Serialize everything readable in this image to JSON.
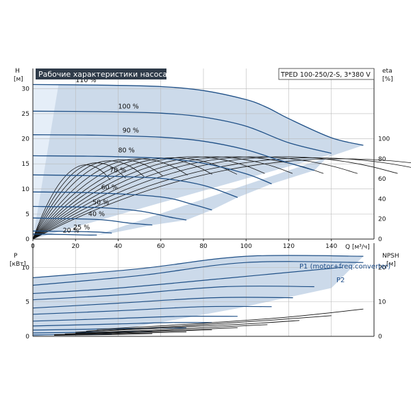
{
  "chart_data": [
    {
      "type": "line",
      "title": "Рабочие характеристики насоса",
      "model": "TPED 100-250/2-S, 3*380 V",
      "ylabel": "H",
      "yunit": "[м]",
      "y2label": "eta",
      "y2unit": "[%]",
      "xlabel": "Q [м³/ч]",
      "xlim": [
        0,
        160
      ],
      "ylim": [
        0,
        34
      ],
      "y2lim": [
        0,
        170
      ],
      "xticks": [
        0,
        20,
        40,
        60,
        80,
        100,
        120,
        140
      ],
      "yticks": [
        0,
        5,
        10,
        15,
        20,
        25,
        30
      ],
      "y2ticks": [
        0,
        20,
        40,
        60,
        80,
        100
      ],
      "grid": true,
      "speed_curves": [
        {
          "name": "110 %",
          "points": [
            [
              0,
              30.8
            ],
            [
              30,
              30.7
            ],
            [
              60,
              30.4
            ],
            [
              80,
              29.6
            ],
            [
              100,
              27.8
            ],
            [
              110,
              26.2
            ],
            [
              120,
              24.0
            ],
            [
              140,
              20.2
            ],
            [
              155,
              18.7
            ]
          ]
        },
        {
          "name": "100 %",
          "points": [
            [
              0,
              25.5
            ],
            [
              30,
              25.4
            ],
            [
              60,
              25.1
            ],
            [
              80,
              24.3
            ],
            [
              100,
              22.5
            ],
            [
              120,
              19.2
            ],
            [
              140,
              17.1
            ]
          ]
        },
        {
          "name": "90 %",
          "points": [
            [
              0,
              20.8
            ],
            [
              30,
              20.7
            ],
            [
              60,
              20.3
            ],
            [
              80,
              19.5
            ],
            [
              100,
              17.8
            ],
            [
              115,
              15.8
            ],
            [
              132,
              13.7
            ]
          ]
        },
        {
          "name": "80 %",
          "points": [
            [
              0,
              16.6
            ],
            [
              30,
              16.5
            ],
            [
              60,
              16.1
            ],
            [
              80,
              15.1
            ],
            [
              100,
              13.0
            ],
            [
              112,
              11.0
            ]
          ]
        },
        {
          "name": "70 %",
          "points": [
            [
              0,
              12.8
            ],
            [
              30,
              12.6
            ],
            [
              60,
              12.1
            ],
            [
              80,
              10.7
            ],
            [
              96,
              8.3
            ]
          ]
        },
        {
          "name": "60 %",
          "points": [
            [
              0,
              9.4
            ],
            [
              30,
              9.2
            ],
            [
              60,
              8.4
            ],
            [
              75,
              6.9
            ],
            [
              84,
              5.8
            ]
          ]
        },
        {
          "name": "50 %",
          "points": [
            [
              0,
              6.5
            ],
            [
              30,
              6.3
            ],
            [
              50,
              5.6
            ],
            [
              64,
              4.4
            ],
            [
              72,
              3.8
            ]
          ]
        },
        {
          "name": "40 %",
          "points": [
            [
              0,
              4.2
            ],
            [
              30,
              3.9
            ],
            [
              45,
              3.2
            ],
            [
              56,
              2.8
            ]
          ]
        },
        {
          "name": "25 %",
          "points": [
            [
              0,
              1.6
            ],
            [
              20,
              1.5
            ],
            [
              30,
              1.4
            ],
            [
              37,
              1.2
            ]
          ]
        },
        {
          "name": "20 %",
          "points": [
            [
              0,
              1.0
            ],
            [
              15,
              0.9
            ],
            [
              25,
              0.8
            ],
            [
              30,
              0.8
            ]
          ]
        }
      ],
      "eta_curves_peak": [
        {
          "qpeak": 25,
          "eta": 74
        },
        {
          "qpeak": 30,
          "eta": 76
        },
        {
          "qpeak": 36,
          "eta": 78
        },
        {
          "qpeak": 42,
          "eta": 79
        },
        {
          "qpeak": 50,
          "eta": 80
        },
        {
          "qpeak": 58,
          "eta": 81
        },
        {
          "qpeak": 66,
          "eta": 81
        },
        {
          "qpeak": 75,
          "eta": 82
        },
        {
          "qpeak": 84,
          "eta": 82
        },
        {
          "qpeak": 94,
          "eta": 82
        },
        {
          "qpeak": 105,
          "eta": 82
        },
        {
          "qpeak": 118,
          "eta": 82
        },
        {
          "qpeak": 132,
          "eta": 81
        },
        {
          "qpeak": 145,
          "eta": 80
        }
      ]
    },
    {
      "type": "line",
      "ylabel": "P",
      "yunit": "[кВт]",
      "y2label": "NPSH",
      "y2unit": "[м]",
      "xlim": [
        0,
        160
      ],
      "ylim": [
        0,
        13.5
      ],
      "y2lim": [
        0,
        27
      ],
      "yticks": [
        0,
        5,
        10
      ],
      "y2ticks": [
        0,
        10,
        20
      ],
      "grid": true,
      "series_labels": [
        "P1 (motor+freq.converter)",
        "P2"
      ],
      "power_curves": [
        {
          "points": [
            [
              0,
              8.5
            ],
            [
              50,
              9.8
            ],
            [
              100,
              11.6
            ],
            [
              155,
              11.6
            ]
          ]
        },
        {
          "points": [
            [
              0,
              7.4
            ],
            [
              50,
              8.8
            ],
            [
              100,
              10.7
            ],
            [
              155,
              10.7
            ]
          ]
        },
        {
          "points": [
            [
              0,
              6.2
            ],
            [
              40,
              7.0
            ],
            [
              90,
              8.4
            ],
            [
              145,
              10.0
            ]
          ]
        },
        {
          "points": [
            [
              0,
              5.3
            ],
            [
              40,
              6.0
            ],
            [
              90,
              7.2
            ],
            [
              132,
              7.2
            ]
          ]
        },
        {
          "points": [
            [
              0,
              4.1
            ],
            [
              40,
              4.8
            ],
            [
              85,
              5.6
            ],
            [
              122,
              5.6
            ]
          ]
        },
        {
          "points": [
            [
              0,
              3.2
            ],
            [
              40,
              3.7
            ],
            [
              80,
              4.3
            ],
            [
              112,
              4.3
            ]
          ]
        },
        {
          "points": [
            [
              0,
              2.2
            ],
            [
              40,
              2.6
            ],
            [
              70,
              2.9
            ],
            [
              96,
              2.9
            ]
          ]
        },
        {
          "points": [
            [
              0,
              1.5
            ],
            [
              40,
              1.8
            ],
            [
              65,
              2.0
            ],
            [
              84,
              2.0
            ]
          ]
        },
        {
          "points": [
            [
              0,
              0.9
            ],
            [
              40,
              1.1
            ],
            [
              60,
              1.2
            ],
            [
              72,
              1.2
            ]
          ]
        },
        {
          "points": [
            [
              0,
              0.5
            ],
            [
              30,
              0.6
            ],
            [
              56,
              0.7
            ]
          ]
        },
        {
          "points": [
            [
              0,
              0.2
            ],
            [
              20,
              0.25
            ],
            [
              37,
              0.3
            ]
          ]
        }
      ],
      "npsh_curves": [
        {
          "points": [
            [
              30,
              2.0
            ],
            [
              80,
              3.8
            ],
            [
              120,
              5.6
            ],
            [
              155,
              7.9
            ]
          ]
        },
        {
          "points": [
            [
              25,
              1.5
            ],
            [
              70,
              3.0
            ],
            [
              110,
              4.6
            ],
            [
              140,
              6.0
            ]
          ]
        },
        {
          "points": [
            [
              20,
              1.2
            ],
            [
              60,
              2.4
            ],
            [
              100,
              3.6
            ],
            [
              125,
              4.6
            ]
          ]
        },
        {
          "points": [
            [
              20,
              0.9
            ],
            [
              55,
              1.8
            ],
            [
              90,
              2.8
            ],
            [
              110,
              3.4
            ]
          ]
        },
        {
          "points": [
            [
              15,
              0.7
            ],
            [
              50,
              1.4
            ],
            [
              80,
              2.1
            ],
            [
              96,
              2.5
            ]
          ]
        },
        {
          "points": [
            [
              10,
              0.5
            ],
            [
              40,
              1.0
            ],
            [
              70,
              1.6
            ],
            [
              84,
              1.9
            ]
          ]
        },
        {
          "points": [
            [
              10,
              0.4
            ],
            [
              40,
              0.8
            ],
            [
              72,
              1.3
            ]
          ]
        },
        {
          "points": [
            [
              10,
              0.3
            ],
            [
              35,
              0.5
            ],
            [
              56,
              0.8
            ]
          ]
        }
      ]
    }
  ],
  "colors": {
    "band": "#ccdaea",
    "band_light": "#e5eef8",
    "curve": "#1e4f86",
    "eta": "#111111",
    "grid": "#b9b9b9",
    "title_bg": "#2f3b49"
  }
}
